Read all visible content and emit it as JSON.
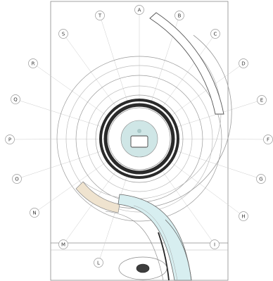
{
  "colors": {
    "background": "#ffffff",
    "line": "#8a8a8a",
    "light_line": "#c9c9c9",
    "dark_ring": "#2f2f2f",
    "core_fill": "#cfe6e6",
    "water_fill": "#d7eef0",
    "tan_fill": "#efe3cf"
  },
  "grid_labels": [
    "A",
    "B",
    "C",
    "D",
    "E",
    "F",
    "G",
    "H",
    "I",
    "L",
    "M",
    "N",
    "O",
    "P",
    "Q",
    "R",
    "S",
    "T"
  ]
}
